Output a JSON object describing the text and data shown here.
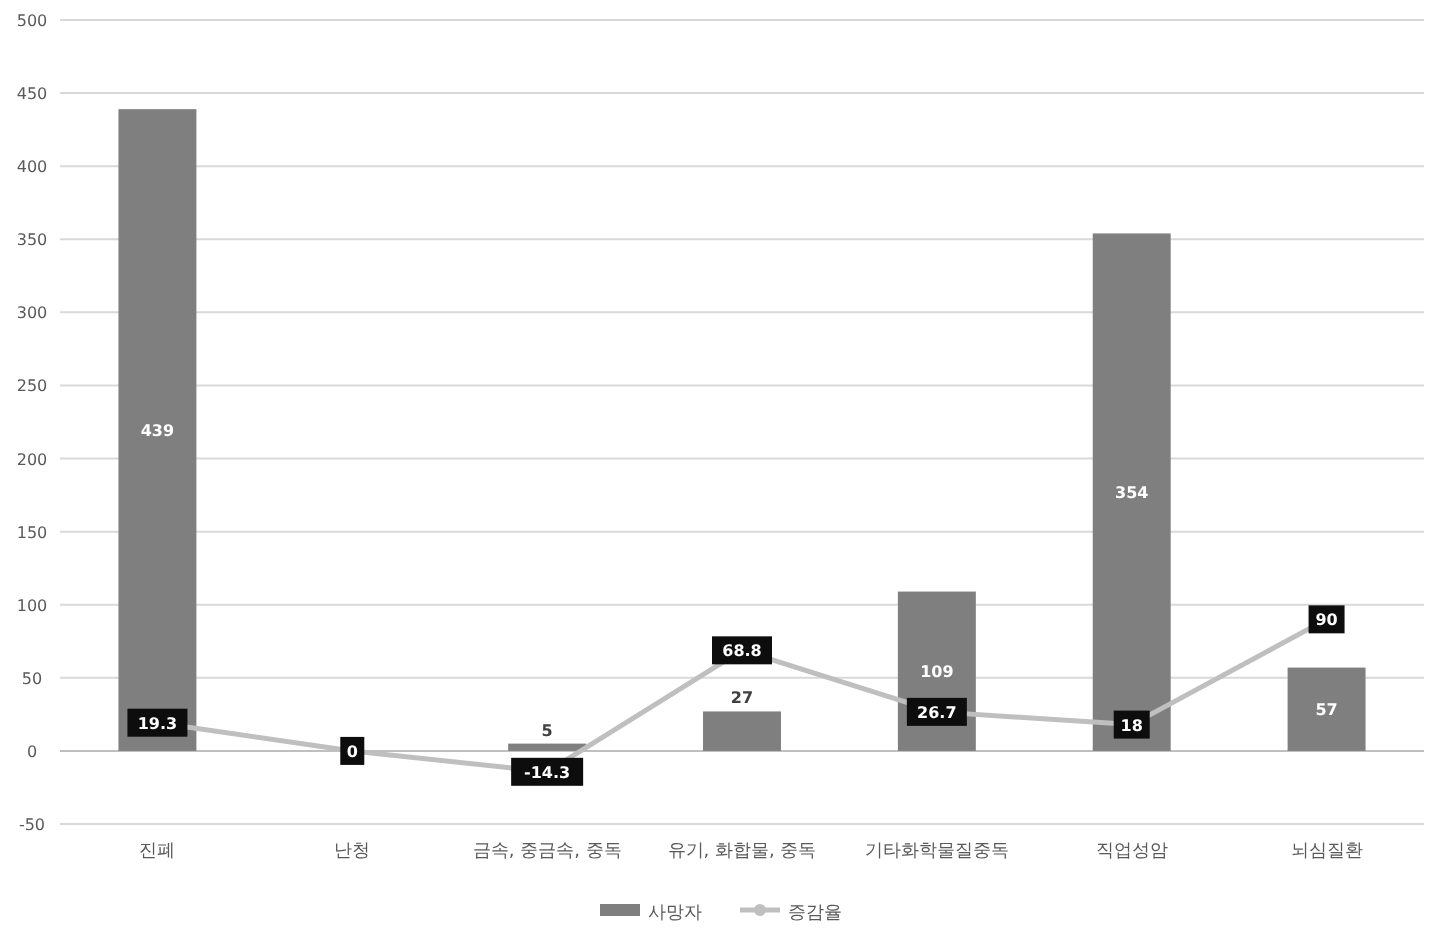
{
  "chart_data": {
    "type": "bar",
    "categories": [
      "진폐",
      "난청",
      "금속, 중금속, 중독",
      "유기, 화합물, 중독",
      "기타화학물질중독",
      "직업성암",
      "뇌심질환"
    ],
    "series": [
      {
        "name": "사망자",
        "color": "#7f7f7f",
        "values": [
          439,
          0,
          5,
          27,
          109,
          354,
          57
        ],
        "value_labels": [
          "439",
          null,
          "5",
          "27",
          "109",
          "354",
          "57"
        ]
      },
      {
        "name": "증감율",
        "type": "line",
        "color": "#bfbfbf",
        "marker": "circle",
        "values": [
          19.3,
          0,
          -14.3,
          68.8,
          26.7,
          18,
          90
        ],
        "value_labels": [
          "19.3",
          "0",
          "-14.3",
          "68.8",
          "26.7",
          "18",
          "90"
        ]
      }
    ],
    "ylim": [
      -50,
      500
    ],
    "yticks": [
      -50,
      0,
      50,
      100,
      150,
      200,
      250,
      300,
      350,
      400,
      450,
      500
    ],
    "grid": "y",
    "legend": "bottom"
  }
}
